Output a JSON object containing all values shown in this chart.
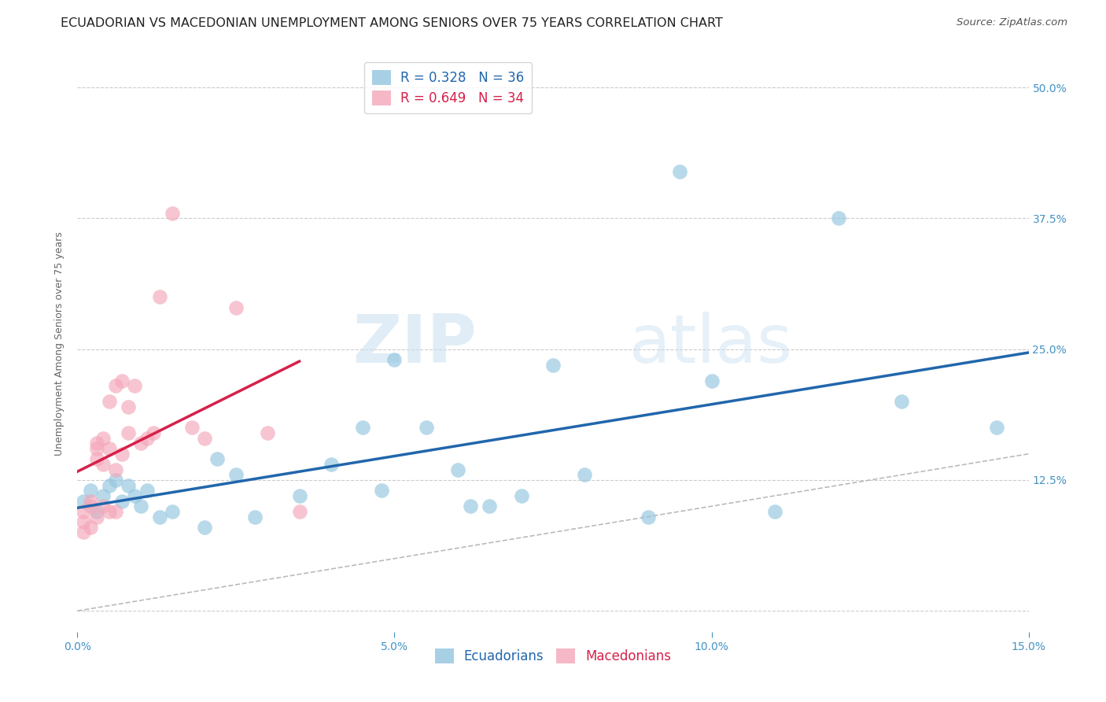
{
  "title": "ECUADORIAN VS MACEDONIAN UNEMPLOYMENT AMONG SENIORS OVER 75 YEARS CORRELATION CHART",
  "source": "Source: ZipAtlas.com",
  "ylabel": "Unemployment Among Seniors over 75 years",
  "xlim": [
    0.0,
    0.15
  ],
  "ylim": [
    -0.02,
    0.53
  ],
  "xticks": [
    0.0,
    0.05,
    0.1,
    0.15
  ],
  "yticks": [
    0.0,
    0.125,
    0.25,
    0.375,
    0.5
  ],
  "ecuadorians_x": [
    0.001,
    0.002,
    0.003,
    0.004,
    0.005,
    0.006,
    0.007,
    0.008,
    0.009,
    0.01,
    0.011,
    0.013,
    0.015,
    0.02,
    0.022,
    0.025,
    0.028,
    0.035,
    0.04,
    0.045,
    0.048,
    0.05,
    0.055,
    0.06,
    0.062,
    0.065,
    0.07,
    0.075,
    0.08,
    0.09,
    0.095,
    0.1,
    0.11,
    0.12,
    0.13,
    0.145
  ],
  "ecuadorians_y": [
    0.105,
    0.115,
    0.095,
    0.11,
    0.12,
    0.125,
    0.105,
    0.12,
    0.11,
    0.1,
    0.115,
    0.09,
    0.095,
    0.08,
    0.145,
    0.13,
    0.09,
    0.11,
    0.14,
    0.175,
    0.115,
    0.24,
    0.175,
    0.135,
    0.1,
    0.1,
    0.11,
    0.235,
    0.13,
    0.09,
    0.42,
    0.22,
    0.095,
    0.375,
    0.2,
    0.175
  ],
  "macedonians_x": [
    0.001,
    0.001,
    0.001,
    0.002,
    0.002,
    0.002,
    0.003,
    0.003,
    0.003,
    0.003,
    0.004,
    0.004,
    0.004,
    0.005,
    0.005,
    0.005,
    0.006,
    0.006,
    0.006,
    0.007,
    0.007,
    0.008,
    0.008,
    0.009,
    0.01,
    0.011,
    0.012,
    0.013,
    0.015,
    0.018,
    0.02,
    0.025,
    0.03,
    0.035
  ],
  "macedonians_y": [
    0.075,
    0.085,
    0.095,
    0.08,
    0.1,
    0.105,
    0.09,
    0.145,
    0.155,
    0.16,
    0.1,
    0.14,
    0.165,
    0.095,
    0.155,
    0.2,
    0.095,
    0.135,
    0.215,
    0.15,
    0.22,
    0.17,
    0.195,
    0.215,
    0.16,
    0.165,
    0.17,
    0.3,
    0.38,
    0.175,
    0.165,
    0.29,
    0.17,
    0.095
  ],
  "ecu_R": 0.328,
  "ecu_N": 36,
  "mac_R": 0.649,
  "mac_N": 34,
  "ecu_color": "#92c5de",
  "mac_color": "#f4a7b9",
  "ecu_line_color": "#2166ac",
  "mac_line_color": "#d6204a",
  "diagonal_color": "#bbbbbb",
  "title_fontsize": 11.5,
  "source_fontsize": 9.5,
  "label_fontsize": 9,
  "tick_fontsize": 10,
  "tick_color": "#4393c3",
  "watermark_zip": "ZIP",
  "watermark_atlas": "atlas",
  "background_color": "#ffffff",
  "grid_color": "#cccccc"
}
